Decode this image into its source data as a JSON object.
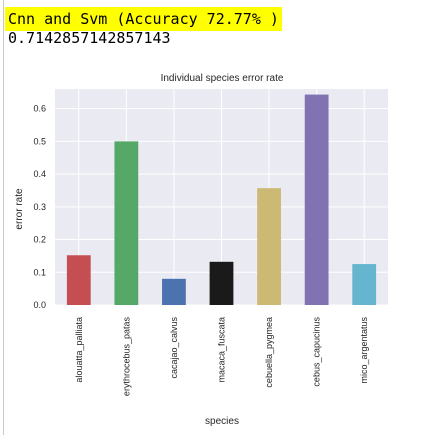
{
  "notebook": {
    "heading": "Cnn and Svm (Accuracy 72.77% )",
    "heading_highlight_color": "#ffff00",
    "result_value": "0.7142857142857143"
  },
  "chart_data": {
    "type": "bar",
    "title": "Individual species error rate",
    "xlabel": "species",
    "ylabel": "error rate",
    "categories": [
      "alouatta_palliata",
      "erythrocebus_patas",
      "cacajao_calvus",
      "macaca_fuscata",
      "cebuella_pygmea",
      "cebus_capucinus",
      "mico_argentatus"
    ],
    "values": [
      0.152,
      0.5,
      0.08,
      0.132,
      0.357,
      0.643,
      0.125
    ],
    "colors": [
      "#c44e52",
      "#55a868",
      "#4c72b0",
      "#1a1a1a",
      "#ccb974",
      "#8172b2",
      "#64b5cd"
    ],
    "ylim": [
      0,
      0.66
    ],
    "yticks": [
      0.0,
      0.1,
      0.2,
      0.3,
      0.4,
      0.5,
      0.6
    ],
    "ytick_labels": [
      "0.0",
      "0.1",
      "0.2",
      "0.3",
      "0.4",
      "0.5",
      "0.6"
    ],
    "grid": true,
    "plot_background": "#eaeaf2",
    "grid_color": "#ffffff"
  }
}
